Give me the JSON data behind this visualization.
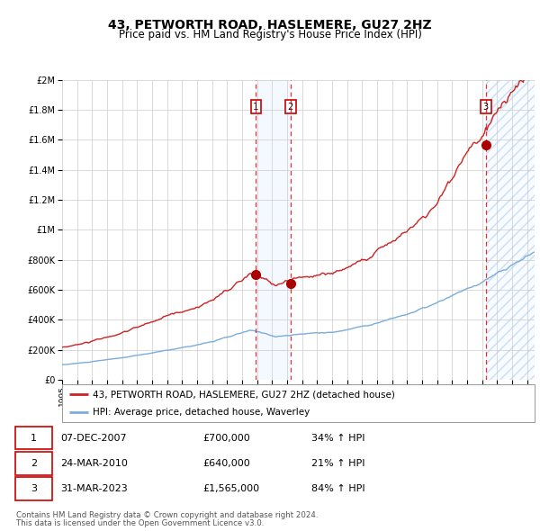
{
  "title": "43, PETWORTH ROAD, HASLEMERE, GU27 2HZ",
  "subtitle": "Price paid vs. HM Land Registry's House Price Index (HPI)",
  "legend_line1": "43, PETWORTH ROAD, HASLEMERE, GU27 2HZ (detached house)",
  "legend_line2": "HPI: Average price, detached house, Waverley",
  "footnote1": "Contains HM Land Registry data © Crown copyright and database right 2024.",
  "footnote2": "This data is licensed under the Open Government Licence v3.0.",
  "transactions": [
    {
      "label": "1",
      "date": "07-DEC-2007",
      "price": 700000,
      "hpi_change": "34% ↑ HPI",
      "x": 2007.92
    },
    {
      "label": "2",
      "date": "24-MAR-2010",
      "price": 640000,
      "hpi_change": "21% ↑ HPI",
      "x": 2010.23
    },
    {
      "label": "3",
      "date": "31-MAR-2023",
      "price": 1565000,
      "hpi_change": "84% ↑ HPI",
      "x": 2023.25
    }
  ],
  "hpi_color": "#7aaddb",
  "price_color": "#cc2222",
  "marker_color": "#aa0000",
  "shade_color": "#ddeeff",
  "grid_color": "#cccccc",
  "background_color": "#ffffff",
  "ylim": [
    0,
    2000000
  ],
  "xlim_start": 1995.0,
  "xlim_end": 2026.5,
  "yticks": [
    0,
    200000,
    400000,
    600000,
    800000,
    1000000,
    1200000,
    1400000,
    1600000,
    1800000,
    2000000
  ]
}
